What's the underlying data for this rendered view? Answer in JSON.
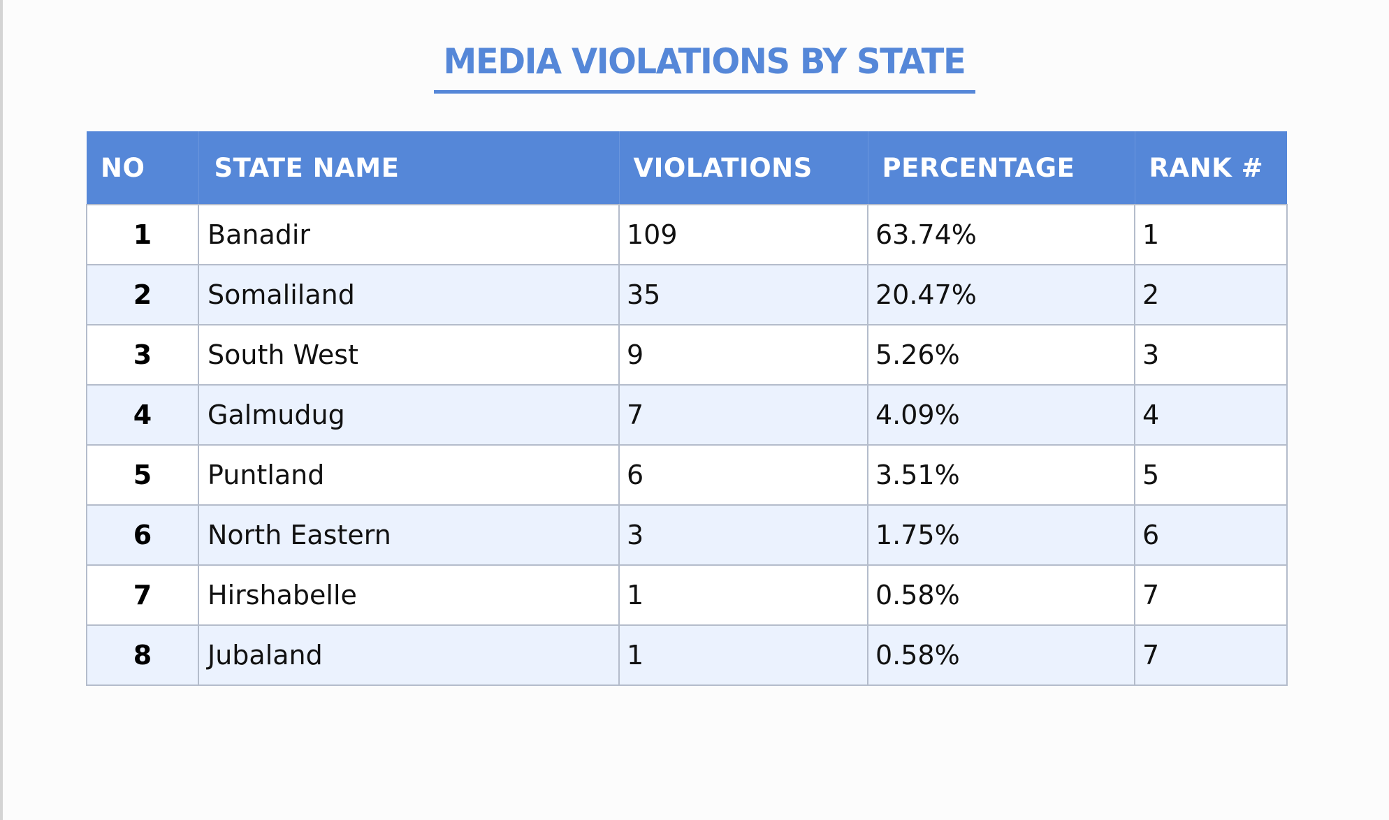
{
  "title": "MEDIA VIOLATIONS BY STATE",
  "colors": {
    "accent": "#5587d8",
    "row_alt": "#ebf2fe",
    "border": "#b4bccb",
    "background": "#fcfcfc"
  },
  "table": {
    "headers": [
      "NO",
      "STATE NAME",
      "VIOLATIONS",
      "PERCENTAGE",
      "RANK #"
    ],
    "rows": [
      {
        "no": "1",
        "state": "Banadir",
        "violations": "109",
        "percentage": "63.74%",
        "rank": "1"
      },
      {
        "no": "2",
        "state": "Somaliland",
        "violations": "35",
        "percentage": "20.47%",
        "rank": "2"
      },
      {
        "no": "3",
        "state": "South West",
        "violations": "9",
        "percentage": "5.26%",
        "rank": "3"
      },
      {
        "no": "4",
        "state": "Galmudug",
        "violations": "7",
        "percentage": "4.09%",
        "rank": "4"
      },
      {
        "no": "5",
        "state": "Puntland",
        "violations": "6",
        "percentage": "3.51%",
        "rank": "5"
      },
      {
        "no": "6",
        "state": "North Eastern",
        "violations": "3",
        "percentage": "1.75%",
        "rank": "6"
      },
      {
        "no": "7",
        "state": "Hirshabelle",
        "violations": "1",
        "percentage": "0.58%",
        "rank": "7"
      },
      {
        "no": "8",
        "state": "Jubaland",
        "violations": "1",
        "percentage": "0.58%",
        "rank": "7"
      }
    ]
  }
}
